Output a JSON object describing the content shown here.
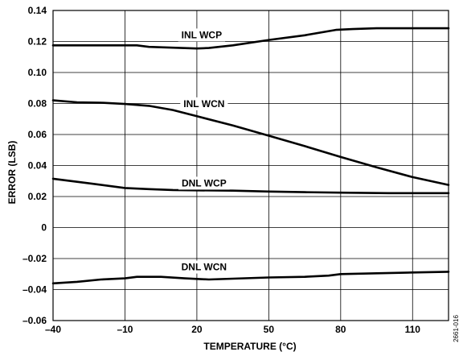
{
  "chart_data": {
    "type": "line",
    "title": "",
    "xlabel": "TEMPERATURE (°C)",
    "ylabel": "ERROR (LSB)",
    "xlim": [
      -40,
      125
    ],
    "ylim": [
      -0.06,
      0.14
    ],
    "x_ticks": [
      -40,
      -10,
      20,
      50,
      80,
      110
    ],
    "x_tick_labels": [
      "–40",
      "–10",
      "20",
      "50",
      "80",
      "110"
    ],
    "x_grid": [
      -40,
      -10,
      20,
      50,
      80,
      110
    ],
    "y_ticks": [
      -0.06,
      -0.04,
      -0.02,
      0,
      0.02,
      0.04,
      0.06,
      0.08,
      0.1,
      0.12,
      0.14
    ],
    "y_tick_labels": [
      "–0.06",
      "–0.04",
      "–0.02",
      "0",
      "0.02",
      "0.04",
      "0.06",
      "0.08",
      "0.10",
      "0.12",
      "0.14"
    ],
    "grid": true,
    "figure_id": "2661-016",
    "series": [
      {
        "name": "INL WCP",
        "label_at": [
          22,
          0.1242
        ],
        "points": [
          [
            -40,
            0.1175
          ],
          [
            -25,
            0.1175
          ],
          [
            -5,
            0.1175
          ],
          [
            0,
            0.1165
          ],
          [
            10,
            0.116
          ],
          [
            20,
            0.1155
          ],
          [
            25,
            0.1158
          ],
          [
            35,
            0.1175
          ],
          [
            50,
            0.121
          ],
          [
            65,
            0.124
          ],
          [
            78,
            0.1275
          ],
          [
            85,
            0.128
          ],
          [
            95,
            0.1285
          ],
          [
            110,
            0.1285
          ],
          [
            125,
            0.1285
          ]
        ]
      },
      {
        "name": "INL WCN",
        "label_at": [
          23,
          0.0798
        ],
        "points": [
          [
            -40,
            0.082
          ],
          [
            -30,
            0.0808
          ],
          [
            -20,
            0.0805
          ],
          [
            -10,
            0.0797
          ],
          [
            0,
            0.0785
          ],
          [
            10,
            0.0758
          ],
          [
            20,
            0.0718
          ],
          [
            35,
            0.0658
          ],
          [
            50,
            0.0592
          ],
          [
            65,
            0.0525
          ],
          [
            80,
            0.0455
          ],
          [
            95,
            0.0388
          ],
          [
            110,
            0.0325
          ],
          [
            125,
            0.0275
          ]
        ]
      },
      {
        "name": "DNL WCP",
        "label_at": [
          23,
          0.0286
        ],
        "points": [
          [
            -40,
            0.0315
          ],
          [
            -25,
            0.0285
          ],
          [
            -10,
            0.0255
          ],
          [
            0,
            0.0248
          ],
          [
            10,
            0.0242
          ],
          [
            20,
            0.024
          ],
          [
            35,
            0.0238
          ],
          [
            50,
            0.0232
          ],
          [
            65,
            0.0228
          ],
          [
            80,
            0.0225
          ],
          [
            100,
            0.0222
          ],
          [
            125,
            0.0222
          ]
        ]
      },
      {
        "name": "DNL WCN",
        "label_at": [
          23,
          -0.0255
        ],
        "points": [
          [
            -40,
            -0.036
          ],
          [
            -30,
            -0.035
          ],
          [
            -20,
            -0.0335
          ],
          [
            -10,
            -0.0328
          ],
          [
            -5,
            -0.0318
          ],
          [
            5,
            -0.0318
          ],
          [
            15,
            -0.0328
          ],
          [
            25,
            -0.0335
          ],
          [
            35,
            -0.033
          ],
          [
            50,
            -0.0322
          ],
          [
            65,
            -0.0318
          ],
          [
            75,
            -0.031
          ],
          [
            80,
            -0.03
          ],
          [
            95,
            -0.0295
          ],
          [
            110,
            -0.029
          ],
          [
            125,
            -0.0285
          ]
        ]
      }
    ]
  }
}
